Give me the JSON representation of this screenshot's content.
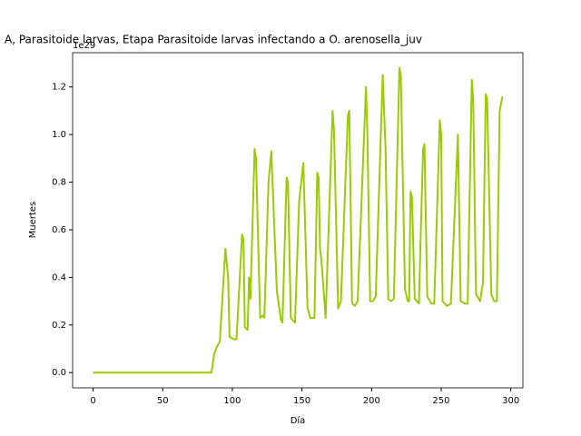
{
  "chart_data": {
    "type": "line",
    "title": "A, Parasitoide larvas, Etapa Parasitoide larvas infectando a O. arenosella_juv",
    "x_label": "Día",
    "y_label": "Muertes",
    "offset_label": "1e29",
    "xlim": [
      -14.7,
      308.7
    ],
    "ylim": [
      -0.064,
      1.344
    ],
    "xticks": [
      0,
      50,
      100,
      150,
      200,
      250,
      300
    ],
    "yticks": [
      {
        "value": 0,
        "label": "0.0"
      },
      {
        "value": 0.2,
        "label": "0.2"
      },
      {
        "value": 0.4,
        "label": "0.4"
      },
      {
        "value": 0.6,
        "label": "0.6"
      },
      {
        "value": 0.8,
        "label": "0.8"
      },
      {
        "value": 1,
        "label": "1.0"
      },
      {
        "value": 1.2,
        "label": "1.2"
      }
    ],
    "grid": false,
    "series": [
      {
        "color": "#99cc00",
        "x": [
          0,
          85,
          87,
          89,
          91,
          95,
          97,
          98,
          101,
          103,
          107,
          108,
          109,
          111,
          112,
          113,
          116,
          117,
          120,
          122,
          123,
          126,
          128,
          132,
          135,
          136,
          139,
          140,
          142,
          145,
          148,
          151,
          154,
          156,
          159,
          161,
          162,
          163,
          164,
          167,
          172,
          173,
          176,
          178,
          183,
          184,
          186,
          188,
          190,
          196,
          197,
          199,
          201,
          203,
          208,
          210,
          212,
          214,
          216,
          220,
          221,
          224,
          226,
          227,
          228,
          229,
          231,
          234,
          237,
          238,
          240,
          243,
          245,
          249,
          250,
          251,
          254,
          257,
          262,
          264,
          267,
          269,
          272,
          273,
          275,
          278,
          280,
          282,
          283,
          286,
          288,
          290,
          292,
          294
        ],
        "values": [
          0,
          0,
          0.08,
          0.11,
          0.13,
          0.52,
          0.4,
          0.15,
          0.14,
          0.14,
          0.58,
          0.56,
          0.19,
          0.18,
          0.4,
          0.31,
          0.94,
          0.9,
          0.23,
          0.24,
          0.23,
          0.8,
          0.93,
          0.34,
          0.22,
          0.21,
          0.82,
          0.8,
          0.23,
          0.21,
          0.72,
          0.88,
          0.27,
          0.23,
          0.23,
          0.84,
          0.82,
          0.52,
          0.47,
          0.23,
          1.1,
          1.02,
          0.27,
          0.3,
          1.08,
          1.1,
          0.29,
          0.28,
          0.3,
          1.2,
          1.0,
          0.3,
          0.3,
          0.32,
          1.25,
          0.95,
          0.31,
          0.3,
          0.31,
          1.28,
          1.25,
          0.35,
          0.3,
          0.3,
          0.76,
          0.74,
          0.31,
          0.29,
          0.94,
          0.96,
          0.32,
          0.29,
          0.29,
          1.06,
          1.0,
          0.3,
          0.28,
          0.29,
          1.0,
          0.3,
          0.29,
          0.29,
          1.23,
          1.15,
          0.33,
          0.3,
          0.38,
          1.17,
          1.15,
          0.33,
          0.3,
          0.3,
          1.1,
          1.16
        ]
      }
    ]
  }
}
